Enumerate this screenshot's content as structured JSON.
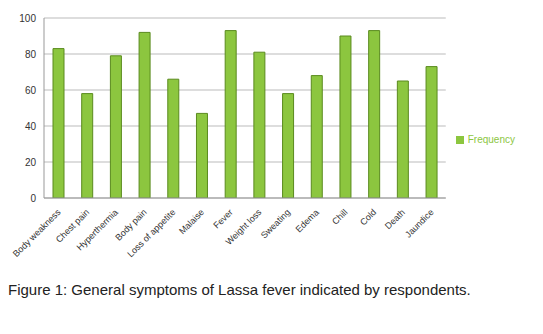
{
  "chart_data": {
    "type": "bar",
    "title": "Figure 1: General symptoms of Lassa fever indicated by respondents.",
    "categories": [
      "Body weakness",
      "Chest pain",
      "Hyperthermia",
      "Body pain",
      "Loss of appetite",
      "Malaise",
      "Fever",
      "Weight loss",
      "Sweating",
      "Edema",
      "Chill",
      "Cold",
      "Death",
      "Jaundice"
    ],
    "series": [
      {
        "name": "Frequency",
        "color": "#8cc63f",
        "values": [
          83,
          58,
          79,
          92,
          66,
          47,
          93,
          81,
          58,
          68,
          90,
          93,
          65,
          73
        ]
      }
    ],
    "ylim": [
      0,
      100
    ],
    "yticks": [
      0,
      20,
      40,
      60,
      80,
      100
    ],
    "grid": true,
    "legend": "right"
  }
}
